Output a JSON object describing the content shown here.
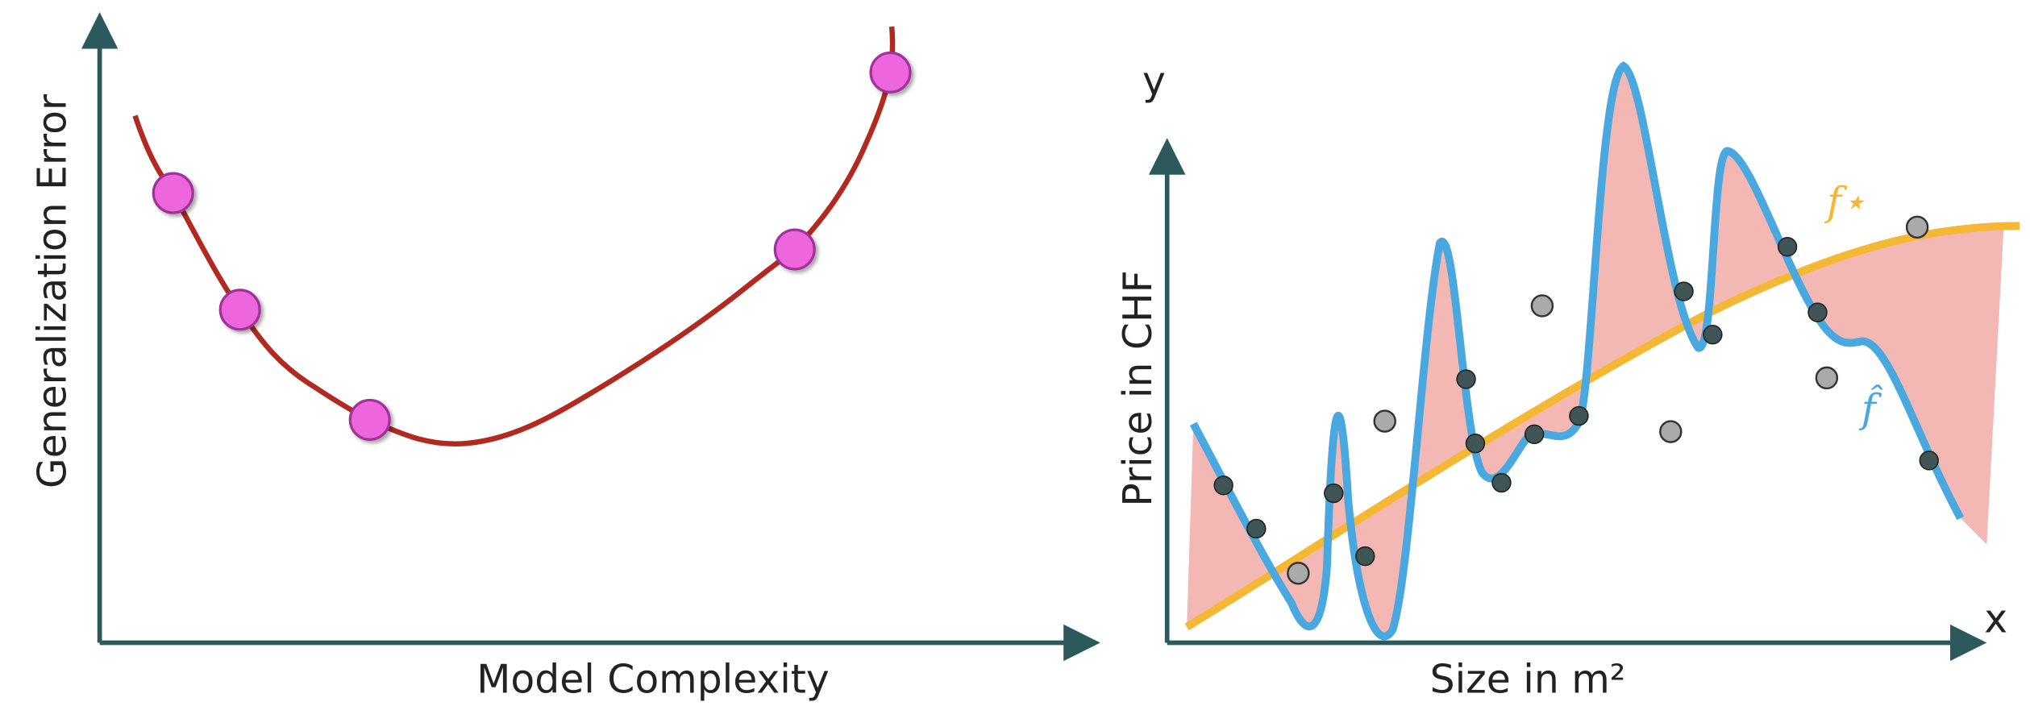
{
  "left_panel": {
    "y_label": "Generalization Error",
    "x_label": "Model Complexity"
  },
  "right_panel": {
    "y_axis": "y",
    "x_axis": "x",
    "y_label": "Price in CHF",
    "x_label": "Size in m²",
    "true_curve_label": "f⋆",
    "fitted_curve_label": "f̂"
  }
}
